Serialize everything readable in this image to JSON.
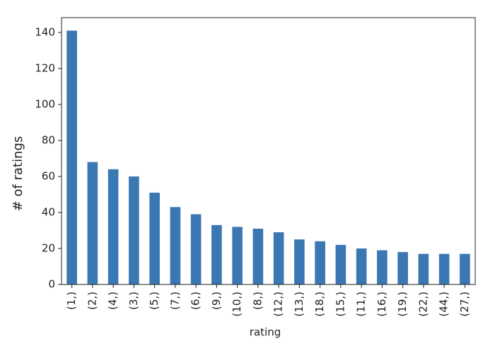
{
  "chart_data": {
    "type": "bar",
    "xlabel": "rating",
    "ylabel": "# of ratings",
    "categories": [
      "(1,)",
      "(2,)",
      "(4,)",
      "(3,)",
      "(5,)",
      "(7,)",
      "(6,)",
      "(9,)",
      "(10,)",
      "(8,)",
      "(12,)",
      "(13,)",
      "(18,)",
      "(15,)",
      "(11,)",
      "(16,)",
      "(19,)",
      "(22,)",
      "(44,)",
      "(27,)"
    ],
    "values": [
      141,
      68,
      64,
      60,
      51,
      43,
      39,
      33,
      32,
      31,
      29,
      25,
      24,
      22,
      20,
      19,
      18,
      17,
      17,
      17
    ],
    "color": "#3b78b3",
    "ylim": [
      0,
      148.2
    ],
    "yticks": [
      0,
      20,
      40,
      60,
      80,
      100,
      120,
      140
    ],
    "grid": false
  }
}
